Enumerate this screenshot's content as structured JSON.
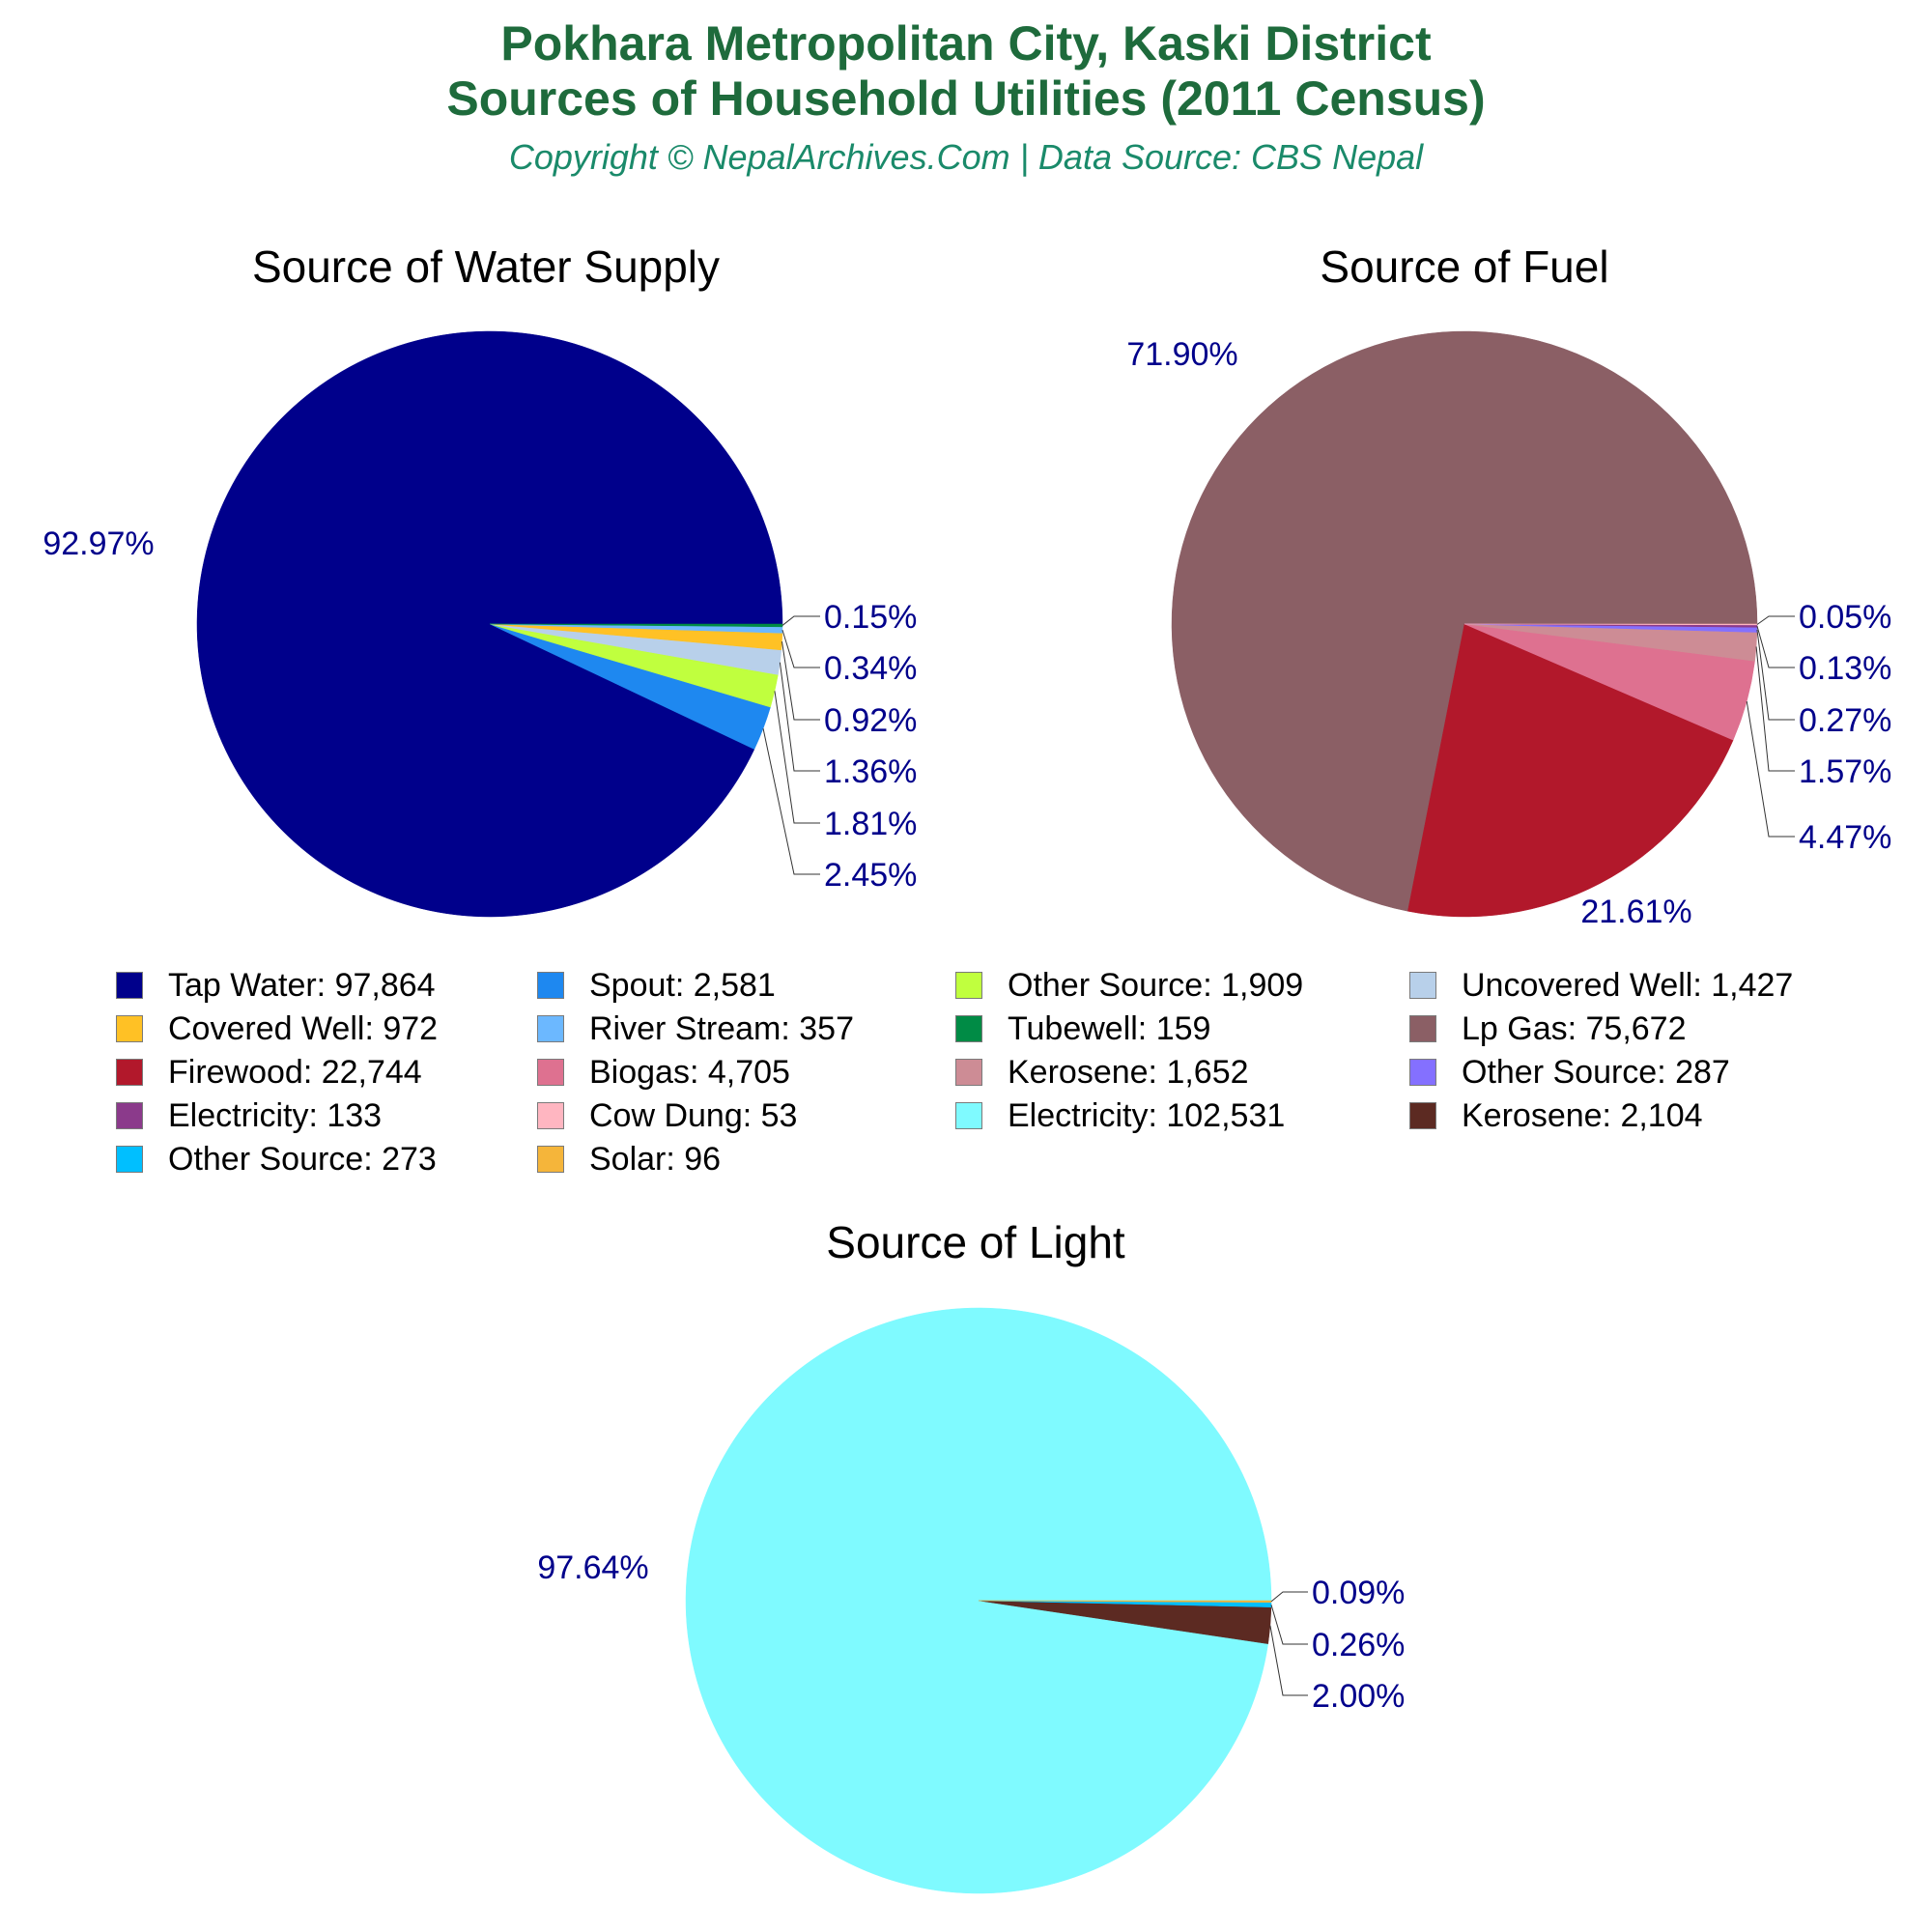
{
  "header": {
    "title_line1": "Pokhara Metropolitan City, Kaski District",
    "title_line2": "Sources of Household Utilities (2011 Census)",
    "subtitle": "Copyright © NepalArchives.Com | Data Source: CBS Nepal"
  },
  "colors": {
    "title": "#1e6b3c",
    "subtitle": "#1a8a6a",
    "pct_label": "#00008b"
  },
  "chart_data": [
    {
      "type": "pie",
      "title": "Source of Water Supply",
      "slices": [
        {
          "label": "Tap Water",
          "value": 97864,
          "percent": "92.97%",
          "color": "#00008b"
        },
        {
          "label": "Spout",
          "value": 2581,
          "percent": "2.45%",
          "color": "#1e88f0"
        },
        {
          "label": "Other Source",
          "value": 1909,
          "percent": "1.81%",
          "color": "#c0ff3e"
        },
        {
          "label": "Uncovered Well",
          "value": 1427,
          "percent": "1.36%",
          "color": "#b8d0ea"
        },
        {
          "label": "Covered Well",
          "value": 972,
          "percent": "0.92%",
          "color": "#ffc125"
        },
        {
          "label": "River Stream",
          "value": 357,
          "percent": "0.34%",
          "color": "#6cb8ff"
        },
        {
          "label": "Tubewell",
          "value": 159,
          "percent": "0.15%",
          "color": "#008b45"
        }
      ]
    },
    {
      "type": "pie",
      "title": "Source of Fuel",
      "slices": [
        {
          "label": "Lp Gas",
          "value": 75672,
          "percent": "71.90%",
          "color": "#8b5f65"
        },
        {
          "label": "Firewood",
          "value": 22744,
          "percent": "21.61%",
          "color": "#b2182b"
        },
        {
          "label": "Biogas",
          "value": 4705,
          "percent": "4.47%",
          "color": "#de7190"
        },
        {
          "label": "Kerosene",
          "value": 1652,
          "percent": "1.57%",
          "color": "#cd8c95"
        },
        {
          "label": "Other Source",
          "value": 287,
          "percent": "0.27%",
          "color": "#8470ff"
        },
        {
          "label": "Electricity",
          "value": 133,
          "percent": "0.13%",
          "color": "#8b3a8b"
        },
        {
          "label": "Cow Dung",
          "value": 53,
          "percent": "0.05%",
          "color": "#ffb6c1"
        }
      ]
    },
    {
      "type": "pie",
      "title": "Source of Light",
      "slices": [
        {
          "label": "Electricity",
          "value": 102531,
          "percent": "97.64%",
          "color": "#7ffaff"
        },
        {
          "label": "Kerosene",
          "value": 2104,
          "percent": "2.00%",
          "color": "#5c2a22"
        },
        {
          "label": "Other Source",
          "value": 273,
          "percent": "0.26%",
          "color": "#00bfff"
        },
        {
          "label": "Solar",
          "value": 96,
          "percent": "0.09%",
          "color": "#f5b53a"
        }
      ]
    }
  ],
  "legend": [
    {
      "text": "Tap Water: 97,864",
      "color": "#00008b"
    },
    {
      "text": "Spout: 2,581",
      "color": "#1e88f0"
    },
    {
      "text": "Other Source: 1,909",
      "color": "#c0ff3e"
    },
    {
      "text": "Uncovered Well: 1,427",
      "color": "#b8d0ea"
    },
    {
      "text": "Covered Well: 972",
      "color": "#ffc125"
    },
    {
      "text": "River Stream: 357",
      "color": "#6cb8ff"
    },
    {
      "text": "Tubewell: 159",
      "color": "#008b45"
    },
    {
      "text": "Lp Gas: 75,672",
      "color": "#8b5f65"
    },
    {
      "text": "Firewood: 22,744",
      "color": "#b2182b"
    },
    {
      "text": "Biogas: 4,705",
      "color": "#de7190"
    },
    {
      "text": "Kerosene: 1,652",
      "color": "#cd8c95"
    },
    {
      "text": "Other Source: 287",
      "color": "#8470ff"
    },
    {
      "text": "Electricity: 133",
      "color": "#8b3a8b"
    },
    {
      "text": "Cow Dung: 53",
      "color": "#ffb6c1"
    },
    {
      "text": "Electricity: 102,531",
      "color": "#7ffaff"
    },
    {
      "text": "Kerosene: 2,104",
      "color": "#5c2a22"
    },
    {
      "text": "Other Source: 273",
      "color": "#00bfff"
    },
    {
      "text": "Solar: 96",
      "color": "#f5b53a"
    }
  ]
}
